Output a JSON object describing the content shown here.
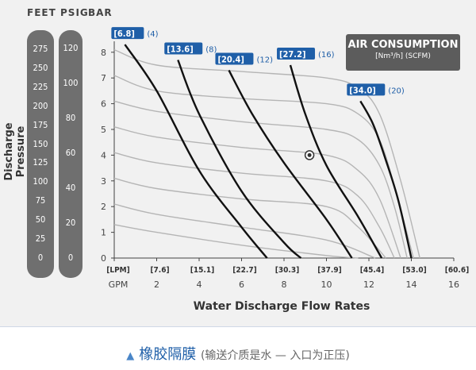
{
  "units": {
    "feet": "FEET",
    "psig": "PSIG",
    "bar": "BAR"
  },
  "feet_ticks": [
    "275",
    "250",
    "225",
    "200",
    "175",
    "150",
    "125",
    "100",
    "75",
    "50",
    "25",
    "0"
  ],
  "psig_ticks": [
    "120",
    "100",
    "80",
    "60",
    "40",
    "20",
    "0"
  ],
  "y_axis_title": "Discharge Pressure",
  "x_axis_title": "Water Discharge Flow Rates",
  "air_box": {
    "title": "AIR CONSUMPTION",
    "subtitle": "[Nm³/h] (SCFM)"
  },
  "caption": {
    "main": "橡胶隔膜",
    "sub": "(输送介质是水 — 入口为正压)"
  },
  "chart_data": {
    "type": "line",
    "x_unit_label": "GPM",
    "xlim": [
      0,
      16
    ],
    "ylim": [
      0,
      8.5
    ],
    "x_ticks": [
      {
        "gpm": 0,
        "label": "GPM",
        "lpm": "[LPM]"
      },
      {
        "gpm": 2,
        "label": "2",
        "lpm": "[7.6]"
      },
      {
        "gpm": 4,
        "label": "4",
        "lpm": "[15.1]"
      },
      {
        "gpm": 6,
        "label": "6",
        "lpm": "[22.7]"
      },
      {
        "gpm": 8,
        "label": "8",
        "lpm": "[30.3]"
      },
      {
        "gpm": 10,
        "label": "10",
        "lpm": "[37.9]"
      },
      {
        "gpm": 12,
        "label": "12",
        "lpm": "[45.4]"
      },
      {
        "gpm": 14,
        "label": "14",
        "lpm": "[53.0]"
      },
      {
        "gpm": 16,
        "label": "16",
        "lpm": "[60.6]"
      }
    ],
    "y_ticks": [
      0,
      1,
      2,
      3,
      4,
      5,
      6,
      7,
      8
    ],
    "y_tick_labels": [
      "0",
      "1",
      "2",
      "3",
      "4",
      "5",
      "6",
      "7",
      "8"
    ],
    "grid": "off",
    "pressure_curves_gray": [
      {
        "points": [
          [
            0,
            8.1
          ],
          [
            2,
            7.5
          ],
          [
            6,
            7.25
          ],
          [
            10,
            7.0
          ],
          [
            11.5,
            6.6
          ],
          [
            12.5,
            5.6
          ],
          [
            13.5,
            3.0
          ],
          [
            14.4,
            0
          ]
        ]
      },
      {
        "points": [
          [
            0,
            7.1
          ],
          [
            2,
            6.5
          ],
          [
            6,
            6.2
          ],
          [
            10,
            6.0
          ],
          [
            11.5,
            5.6
          ],
          [
            12.5,
            4.6
          ],
          [
            13.3,
            2.5
          ],
          [
            14.1,
            0
          ]
        ]
      },
      {
        "points": [
          [
            0,
            6.1
          ],
          [
            2,
            5.7
          ],
          [
            6,
            5.3
          ],
          [
            10,
            5.0
          ],
          [
            11.5,
            4.6
          ],
          [
            12.5,
            3.6
          ],
          [
            13.2,
            2.0
          ],
          [
            13.8,
            0
          ]
        ]
      },
      {
        "points": [
          [
            0,
            5.1
          ],
          [
            2,
            4.7
          ],
          [
            6,
            4.3
          ],
          [
            10,
            4.0
          ],
          [
            11.5,
            3.4
          ],
          [
            12.5,
            2.3
          ],
          [
            13.5,
            0
          ]
        ]
      },
      {
        "points": [
          [
            0,
            4.1
          ],
          [
            2,
            3.7
          ],
          [
            6,
            3.3
          ],
          [
            10,
            3.0
          ],
          [
            11.5,
            2.4
          ],
          [
            12.5,
            1.2
          ],
          [
            13.2,
            0
          ]
        ]
      },
      {
        "points": [
          [
            0,
            3.1
          ],
          [
            2,
            2.7
          ],
          [
            6,
            2.3
          ],
          [
            10,
            2.0
          ],
          [
            11.5,
            1.2
          ],
          [
            12.8,
            0
          ]
        ]
      },
      {
        "points": [
          [
            0,
            2.1
          ],
          [
            2,
            1.7
          ],
          [
            6,
            1.2
          ],
          [
            10,
            0.7
          ],
          [
            12.3,
            0
          ]
        ]
      },
      {
        "points": [
          [
            0,
            1.3
          ],
          [
            2,
            1.0
          ],
          [
            6,
            0.5
          ],
          [
            10,
            0.1
          ],
          [
            11.5,
            0
          ]
        ]
      }
    ],
    "series": [
      {
        "name": "[6.8] (4)",
        "badge_main": "[6.8]",
        "badge_sub": "(4)",
        "points": [
          [
            0.5,
            8.3
          ],
          [
            2,
            6.5
          ],
          [
            4,
            3.4
          ],
          [
            6,
            1.2
          ],
          [
            7.2,
            0
          ]
        ]
      },
      {
        "name": "[13.6] (8)",
        "badge_main": "[13.6]",
        "badge_sub": "(8)",
        "points": [
          [
            3.0,
            7.7
          ],
          [
            4,
            5.6
          ],
          [
            6,
            2.6
          ],
          [
            8,
            0.6
          ],
          [
            8.8,
            0
          ]
        ]
      },
      {
        "name": "[20.4] (12)",
        "badge_main": "[20.4]",
        "badge_sub": "(12)",
        "points": [
          [
            5.4,
            7.3
          ],
          [
            6.5,
            5.6
          ],
          [
            8,
            3.7
          ],
          [
            10,
            1.5
          ],
          [
            11.2,
            0
          ]
        ]
      },
      {
        "name": "[27.2] (16)",
        "badge_main": "[27.2]",
        "badge_sub": "(16)",
        "points": [
          [
            8.3,
            7.5
          ],
          [
            9,
            5.6
          ],
          [
            10,
            3.6
          ],
          [
            11.5,
            1.6
          ],
          [
            12.6,
            0
          ]
        ]
      },
      {
        "name": "[34.0] (20)",
        "badge_main": "[34.0]",
        "badge_sub": "(20)",
        "points": [
          [
            11.6,
            6.1
          ],
          [
            12.2,
            5.2
          ],
          [
            12.8,
            3.8
          ],
          [
            13.4,
            2.2
          ],
          [
            14,
            0
          ]
        ]
      }
    ],
    "marked_point": [
      9.2,
      4.0
    ]
  }
}
